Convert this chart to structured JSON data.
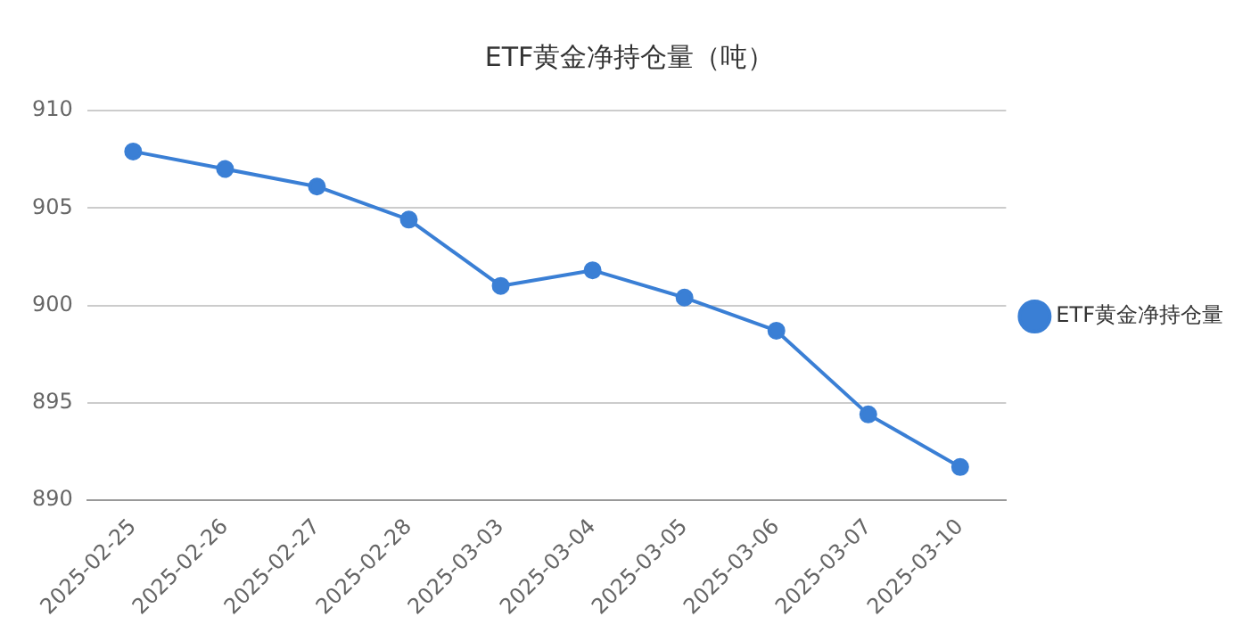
{
  "chart_data": {
    "type": "line",
    "title": "ETF黄金净持仓量（吨）",
    "categories": [
      "2025-02-25",
      "2025-02-26",
      "2025-02-27",
      "2025-02-28",
      "2025-03-03",
      "2025-03-04",
      "2025-03-05",
      "2025-03-06",
      "2025-03-07",
      "2025-03-10"
    ],
    "series": [
      {
        "name": "ETF黄金净持仓量",
        "color": "#3a7fd5",
        "values": [
          907.9,
          907.0,
          906.1,
          904.4,
          901.0,
          901.8,
          900.4,
          898.7,
          894.4,
          891.7
        ]
      }
    ],
    "ylim": [
      890,
      910
    ],
    "yticks": [
      890,
      895,
      900,
      905,
      910
    ],
    "grid": "y",
    "legend": "right",
    "marker": "circle"
  }
}
